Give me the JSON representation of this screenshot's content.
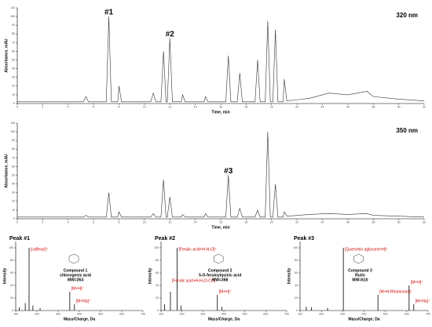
{
  "chart_data": [
    {
      "type": "line",
      "title": "320 nm",
      "ylabel": "Absorbance, mAU",
      "xlabel": "Time, min",
      "color": "#333333",
      "x": [
        0,
        5.2,
        5.4,
        5.6,
        7.0,
        7.2,
        7.4,
        7.9,
        8.0,
        8.2,
        10.5,
        10.7,
        10.9,
        11.3,
        11.5,
        11.7,
        11.8,
        12.0,
        12.2,
        12.9,
        13.0,
        13.2,
        14.7,
        14.8,
        15.0,
        16.4,
        16.6,
        16.8,
        17.3,
        17.5,
        17.7,
        18.7,
        18.9,
        19.1,
        19.5,
        19.7,
        19.9,
        20.1,
        20.3,
        20.5,
        20.9,
        21.0,
        21.2,
        23,
        24.5,
        26,
        27.5,
        28,
        30,
        32
      ],
      "values": [
        2,
        2,
        8,
        2,
        2,
        100,
        2,
        2,
        20,
        2,
        2,
        12,
        2,
        2,
        60,
        2,
        2,
        75,
        2,
        2,
        10,
        2,
        2,
        8,
        2,
        2,
        55,
        2,
        2,
        35,
        2,
        2,
        50,
        2,
        2,
        95,
        2,
        2,
        85,
        2,
        2,
        28,
        3,
        6,
        12,
        10,
        14,
        8,
        5,
        3
      ],
      "annotations": [
        "#1",
        "#2"
      ],
      "xlim": [
        0,
        32
      ],
      "xticks": [
        0,
        2,
        4,
        6,
        8,
        10,
        12,
        14,
        16,
        18,
        20,
        22,
        24,
        26,
        28,
        30,
        32
      ],
      "ylim": [
        0,
        110
      ],
      "yticks": [
        0,
        10,
        20,
        30,
        40,
        50,
        60,
        70,
        80,
        90,
        100,
        110
      ]
    },
    {
      "type": "line",
      "title": "350 nm",
      "ylabel": "Absorbance, mAU",
      "xlabel": "Time, min",
      "color": "#333333",
      "x": [
        0,
        5.2,
        5.4,
        5.6,
        7.0,
        7.2,
        7.4,
        7.9,
        8.0,
        8.2,
        10.5,
        10.7,
        10.9,
        11.3,
        11.5,
        11.7,
        11.8,
        12.0,
        12.2,
        12.9,
        13.0,
        13.2,
        14.7,
        14.8,
        15.0,
        16.4,
        16.6,
        16.8,
        17.3,
        17.5,
        17.7,
        18.7,
        18.9,
        19.1,
        19.5,
        19.7,
        19.9,
        20.1,
        20.3,
        20.5,
        20.9,
        21.0,
        21.2,
        23,
        24.5,
        26,
        27.5,
        28,
        30,
        32
      ],
      "values": [
        2,
        2,
        4,
        2,
        2,
        30,
        2,
        2,
        8,
        2,
        2,
        6,
        2,
        2,
        45,
        2,
        2,
        25,
        2,
        2,
        5,
        2,
        2,
        6,
        2,
        2,
        50,
        2,
        2,
        12,
        2,
        2,
        10,
        2,
        2,
        100,
        2,
        2,
        40,
        2,
        2,
        8,
        3,
        5,
        6,
        5,
        6,
        4,
        3,
        2
      ],
      "annotations": [
        "#3"
      ],
      "xlim": [
        0,
        32
      ],
      "xticks": [
        0,
        2,
        4,
        6,
        8,
        10,
        12,
        14,
        16,
        18,
        20,
        22,
        24,
        26,
        28,
        30,
        32
      ],
      "ylim": [
        0,
        110
      ],
      "yticks": [
        0,
        10,
        20,
        30,
        40,
        50,
        60,
        70,
        80,
        90,
        100,
        110
      ]
    },
    {
      "type": "spectrum",
      "title": "Peak #1",
      "ylabel": "Intensity",
      "xlabel": "Mass/Charge, Da",
      "color": "#000000",
      "x": [
        117,
        145,
        163,
        181,
        215,
        355,
        377
      ],
      "values": [
        5,
        12,
        100,
        8,
        4,
        30,
        10
      ],
      "annotations": [
        "[caffeoyl]⁺",
        "[M+H]⁺",
        "[M+Na]⁺"
      ],
      "compound": [
        "Compound 1",
        "chlorogenic acid",
        "MW=354"
      ],
      "xlim": [
        100,
        700
      ],
      "xticks": [
        100,
        200,
        300,
        400,
        500,
        600,
        700
      ],
      "ylim": [
        0,
        110
      ],
      "yticks": [
        0,
        20,
        40,
        60,
        80,
        100
      ]
    },
    {
      "type": "spectrum",
      "title": "Peak #2",
      "ylabel": "Intensity",
      "xlabel": "Mass/Charge, Da",
      "color": "#000000",
      "x": [
        117,
        145,
        177,
        195,
        369,
        391
      ],
      "values": [
        10,
        30,
        100,
        8,
        25,
        6
      ],
      "annotations": [
        "[Ferulic acid+H-H₂O]⁺",
        "[M+H]⁺",
        "[Ferulic acid+H-H₂O-CO]⁺"
      ],
      "compound": [
        "Compound 2",
        "5-O-feruloylquinic acid",
        "MW=368"
      ],
      "xlim": [
        100,
        700
      ],
      "xticks": [
        100,
        200,
        300,
        400,
        500,
        600,
        700
      ],
      "ylim": [
        0,
        110
      ],
      "yticks": [
        0,
        20,
        40,
        60,
        80,
        100
      ]
    },
    {
      "type": "spectrum",
      "title": "Peak #3",
      "ylabel": "Intensity",
      "xlabel": "Mass/Charge, Da",
      "color": "#000000",
      "x": [
        129,
        153,
        229,
        303,
        465,
        611,
        633
      ],
      "values": [
        6,
        5,
        4,
        100,
        25,
        40,
        10
      ],
      "annotations": [
        "[Quercetin aglycone+H]⁺",
        "[M+H-Rhamnose]⁺",
        "[M+H]⁺",
        "[M+Na]⁺"
      ],
      "compound": [
        "Compound 3",
        "Rutin",
        "MW=610"
      ],
      "xlim": [
        100,
        700
      ],
      "xticks": [
        100,
        200,
        300,
        400,
        500,
        600,
        700
      ],
      "ylim": [
        0,
        110
      ],
      "yticks": [
        0,
        20,
        40,
        60,
        80,
        100
      ]
    }
  ]
}
